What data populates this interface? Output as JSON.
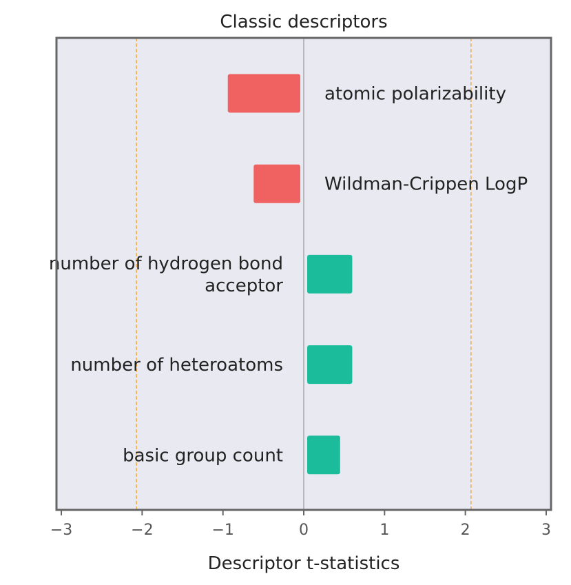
{
  "chart_data": {
    "type": "bar",
    "orientation": "horizontal",
    "title": "Classic descriptors",
    "xlabel": "Descriptor t-statistics",
    "ylabel": "",
    "xlim": [
      -3.06,
      3.06
    ],
    "xticks": [
      -3,
      -2,
      -1,
      0,
      1,
      2,
      3
    ],
    "xtick_labels": [
      "−3",
      "−2",
      "−1",
      "0",
      "1",
      "2",
      "3"
    ],
    "grid": false,
    "threshold_lines": [
      -2.07,
      2.07
    ],
    "categories": [
      "atomic polarizability",
      "Wildman-Crippen LogP",
      "number of hydrogen bond acceptor",
      "number of heteroatoms",
      "basic group count"
    ],
    "label_lines": [
      [
        "atomic polarizability"
      ],
      [
        "Wildman-Crippen LogP"
      ],
      [
        "number of hydrogen bond",
        "acceptor"
      ],
      [
        "number of heteroatoms"
      ],
      [
        "basic group count"
      ]
    ],
    "values": [
      -0.94,
      -0.62,
      0.6,
      0.6,
      0.45
    ],
    "colors": {
      "negative": "#f06262",
      "positive": "#1abc9c",
      "threshold": "#f5a742",
      "zero_line": "#999999",
      "background": "#e9e9f1",
      "frame": "#666666"
    }
  }
}
